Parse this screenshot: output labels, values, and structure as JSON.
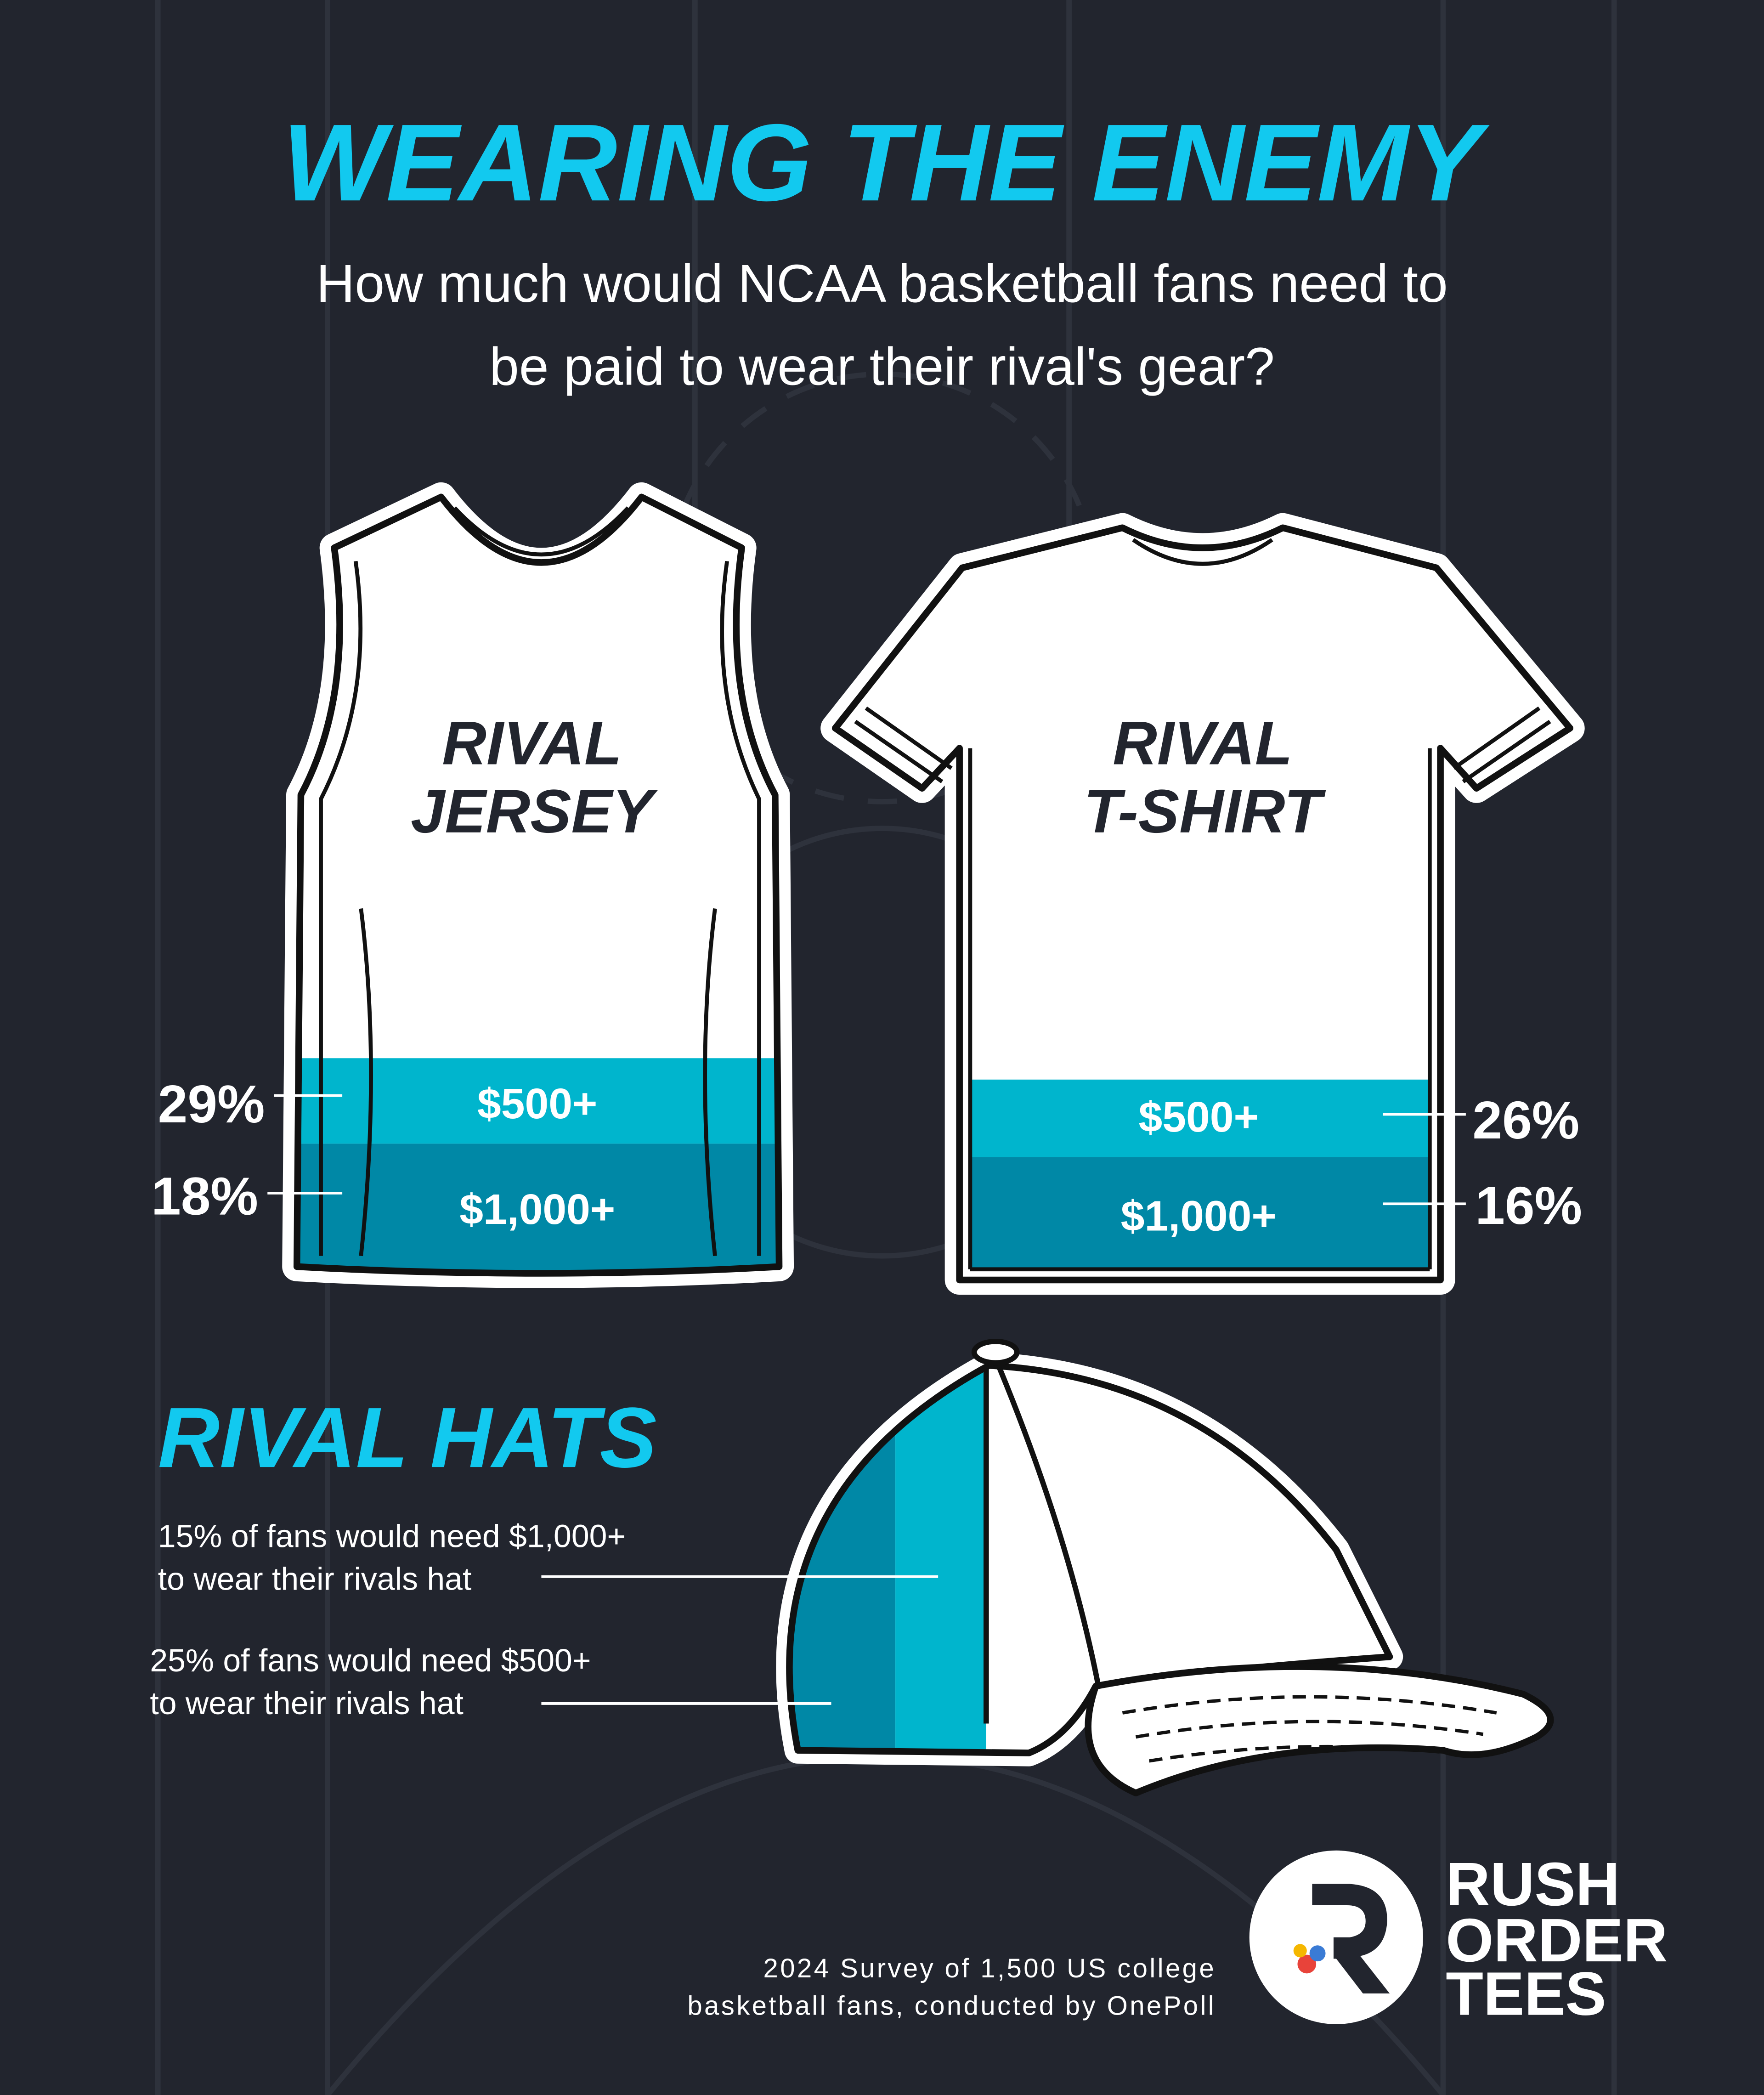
{
  "title": "WEARING THE ENEMY",
  "subtitle": [
    "How much would NCAA basketball fans need to",
    "be paid to wear their rival's gear?"
  ],
  "jersey": {
    "label": [
      "RIVAL",
      "JERSEY"
    ],
    "tiers": [
      {
        "price": "$500+",
        "share": "29%"
      },
      {
        "price": "$1,000+",
        "share": "18%"
      }
    ]
  },
  "tshirt": {
    "label": [
      "RIVAL",
      "T-SHIRT"
    ],
    "tiers": [
      {
        "price": "$500+",
        "share": "26%"
      },
      {
        "price": "$1,000+",
        "share": "16%"
      }
    ]
  },
  "hats": {
    "title": "RIVAL HATS",
    "notes": [
      [
        "15% of fans would need $1,000+",
        "to wear their rivals hat"
      ],
      [
        "25% of fans would need $500+",
        "to wear their rivals hat"
      ]
    ]
  },
  "source": [
    "2024 Survey of 1,500 US college",
    "basketball fans, conducted by OnePoll"
  ],
  "brand": [
    "RUSH",
    "ORDER",
    "TEES"
  ]
}
